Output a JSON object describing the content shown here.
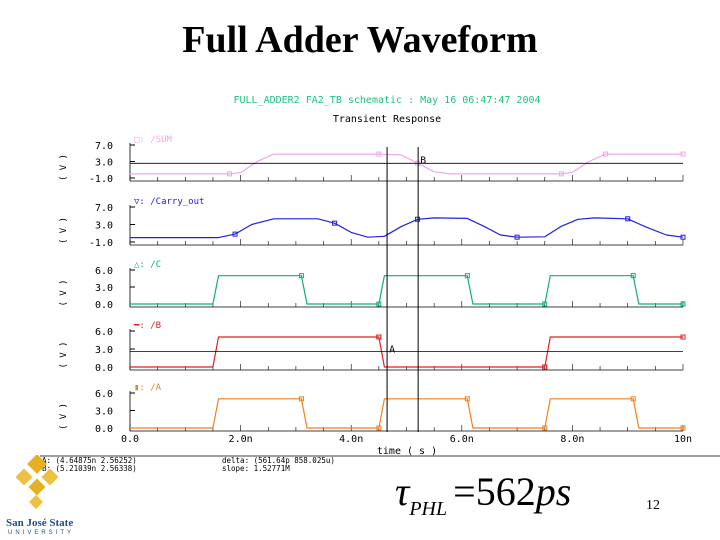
{
  "slide": {
    "title": "Full Adder Waveform",
    "page_number": "12",
    "formula": {
      "symbol": "τ",
      "subscript": "PHL",
      "equals": "=",
      "value": "562",
      "unit": "ps"
    },
    "logo": {
      "name": "San José State",
      "sub": "UNIVERSITY"
    }
  },
  "chart_data": {
    "type": "line",
    "header": "FULL_ADDER2 FA2_TB schematic : May 16 06:47:47 2004",
    "title": "Transient Response",
    "xlabel": "time ( s )",
    "xlim": [
      0,
      10
    ],
    "x_ticks": [
      "0.0",
      "2.0n",
      "4.0n",
      "6.0n",
      "8.0n",
      "10n"
    ],
    "x_tick_values": [
      0,
      2,
      4,
      6,
      8,
      10
    ],
    "ylabel": "( V )",
    "panels": [
      {
        "name": "/SUM",
        "legend": "□: /SUM",
        "color": "#f0a8e8",
        "ylim": [
          -1,
          7
        ],
        "y_ticks": [
          "7.0",
          "3.0",
          "-1.0"
        ],
        "y_tick_values": [
          7,
          3,
          -1
        ],
        "x": [
          0,
          1.8,
          2.0,
          2.3,
          2.6,
          4.5,
          4.9,
          5.2,
          5.5,
          5.8,
          7.8,
          8.0,
          8.3,
          8.6,
          10
        ],
        "y": [
          0,
          0,
          0.3,
          3.0,
          4.8,
          4.8,
          4.6,
          2.6,
          0.5,
          0,
          0,
          0.4,
          3.0,
          4.8,
          4.8
        ]
      },
      {
        "name": "/Carry_out",
        "legend": "▽: /Carry_out",
        "color": "#2020e0",
        "ylim": [
          -1,
          7
        ],
        "y_ticks": [
          "7.0",
          "3.0",
          "-1.0"
        ],
        "y_tick_values": [
          7,
          3,
          -1
        ],
        "x": [
          0,
          1.6,
          1.9,
          2.2,
          2.6,
          3.4,
          3.7,
          4.0,
          4.3,
          4.6,
          4.9,
          5.2,
          5.5,
          6.1,
          6.4,
          6.7,
          7.0,
          7.5,
          7.8,
          8.1,
          8.4,
          9.0,
          9.3,
          9.7,
          10
        ],
        "y": [
          0,
          0,
          0.8,
          3.0,
          4.3,
          4.3,
          3.3,
          1.2,
          0.1,
          0.3,
          2.5,
          4.2,
          4.5,
          4.4,
          2.6,
          0.6,
          0.1,
          0.2,
          2.6,
          4.2,
          4.5,
          4.3,
          2.6,
          0.6,
          0.1
        ]
      },
      {
        "name": "/C",
        "legend": "△: /C",
        "color": "#10b070",
        "ylim": [
          0,
          6
        ],
        "y_ticks": [
          "6.0",
          "3.0",
          "0.0"
        ],
        "y_tick_values": [
          6,
          3,
          0
        ],
        "x": [
          0,
          1.5,
          1.6,
          3.1,
          3.2,
          4.5,
          4.6,
          6.1,
          6.2,
          7.5,
          7.6,
          9.1,
          9.2,
          10
        ],
        "y": [
          0,
          0,
          5,
          5,
          0,
          0,
          5,
          5,
          0,
          0,
          5,
          5,
          0,
          0
        ]
      },
      {
        "name": "/B",
        "legend": "━: /B",
        "color": "#e02020",
        "ylim": [
          0,
          6
        ],
        "y_ticks": [
          "6.0",
          "3.0",
          "0.0"
        ],
        "y_tick_values": [
          6,
          3,
          0
        ],
        "x": [
          0,
          1.5,
          1.6,
          4.5,
          4.6,
          7.5,
          7.6,
          10
        ],
        "y": [
          0,
          0,
          5,
          5,
          0,
          0,
          5,
          5
        ]
      },
      {
        "name": "/A",
        "legend": "▮: /A",
        "color": "#f08020",
        "ylim": [
          0,
          6
        ],
        "y_ticks": [
          "6.0",
          "3.0",
          "0.0"
        ],
        "y_tick_values": [
          6,
          3,
          0
        ],
        "x": [
          0,
          1.5,
          1.6,
          3.1,
          3.2,
          4.5,
          4.6,
          6.1,
          6.2,
          7.5,
          7.6,
          9.1,
          9.2,
          10
        ],
        "y": [
          0,
          0,
          5,
          5,
          0,
          0,
          5,
          5,
          0,
          0,
          5,
          5,
          0,
          0
        ]
      }
    ],
    "cursors": [
      {
        "label": "A",
        "x": 4.64875,
        "y": 2.56252,
        "panel": 3
      },
      {
        "label": "B",
        "x": 5.21039,
        "y": 2.56338,
        "panel": 0
      }
    ],
    "readouts": {
      "a": "A: (4.64875n 2.56252)",
      "b": "B: (5.21039n 2.56338)",
      "delta": "delta: (561.64p 858.025u)",
      "slope": "slope: 1.52771M"
    },
    "header_color": "#20c080"
  }
}
